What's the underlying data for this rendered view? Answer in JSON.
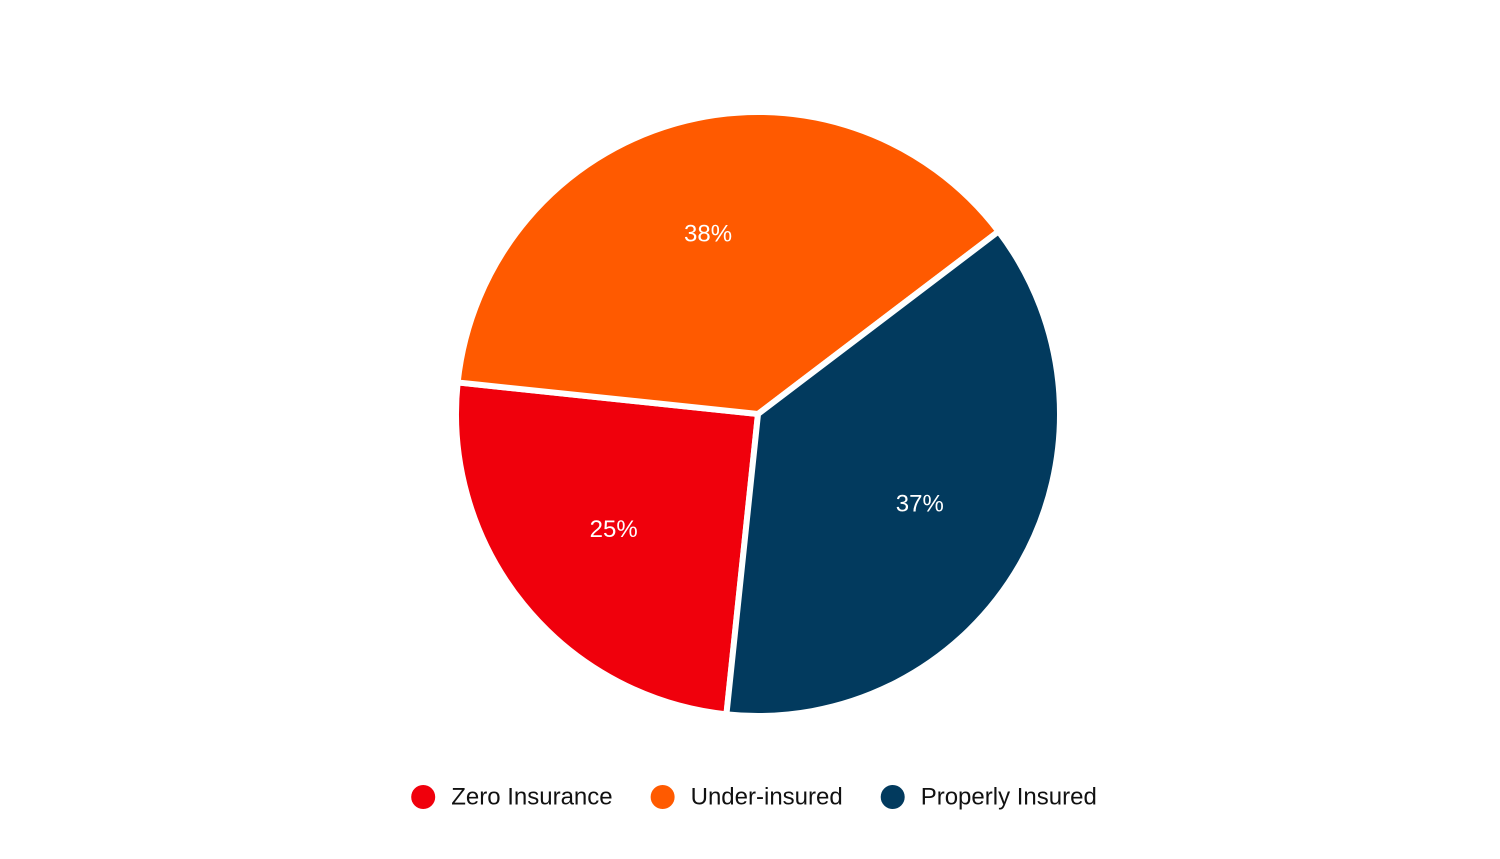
{
  "chart_data": {
    "type": "pie",
    "categories": [
      "Zero Insurance",
      "Under-insured",
      "Properly Insured"
    ],
    "values": [
      25,
      38,
      37
    ],
    "value_labels": [
      "25%",
      "38%",
      "37%"
    ],
    "colors": [
      "#f0000c",
      "#ff5a00",
      "#023a5e"
    ],
    "legend": "bottom"
  }
}
